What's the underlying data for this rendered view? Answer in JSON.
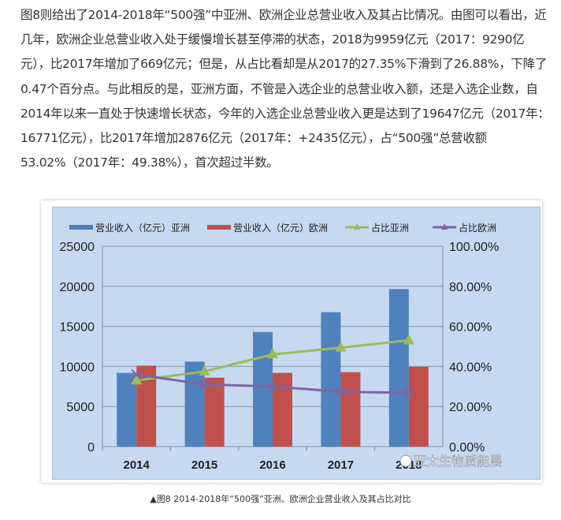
{
  "paragraph": "图8则给出了2014-2018年“500强”中亚洲、欧洲企业总营业收入及其占比情况。由图可以看出，近几年，欧洲企业总营业收入处于缓慢增长甚至停滞的状态，2018为9959亿元（2017：9290亿元），比2017年增加了669亿元；但是，从占比看却是从2017的27.35%下滑到了26.88%，下降了0.47个百分点。与此相反的是，亚洲方面，不管是入选企业的总营业收入额，还是入选企业数，自2014年以来一直处于快速增长状态，今年的入选企业总营业收入更是达到了19647亿元（2017年：16771亿元），比2017年增加2876亿元（2017年：+2435亿元），占“500强”总营收额53.02%（2017年：49.38%），首次超过半数。",
  "caption": "▲图8 2014-2018年“500强”亚洲、欧洲企业营业收入及其占比对比",
  "watermark": "亚太生物质能展",
  "chart_data": {
    "type": "bar",
    "categories": [
      "2014",
      "2015",
      "2016",
      "2017",
      "2018"
    ],
    "series": [
      {
        "name": "营业收入（亿元）亚洲",
        "type": "bar",
        "axis": "left",
        "color": "#4f81bd",
        "values": [
          9200,
          10600,
          14300,
          16771,
          19647
        ]
      },
      {
        "name": "营业收入（亿元）欧洲",
        "type": "bar",
        "axis": "left",
        "color": "#c0504d",
        "values": [
          10100,
          8600,
          9200,
          9290,
          9959
        ]
      },
      {
        "name": "占比亚洲",
        "type": "line",
        "axis": "right",
        "color": "#9bbb59",
        "values": [
          33.0,
          37.5,
          46.0,
          49.38,
          53.02
        ]
      },
      {
        "name": "占比欧洲",
        "type": "line",
        "axis": "right",
        "color": "#8064a2",
        "values": [
          36.0,
          31.0,
          30.0,
          27.35,
          26.88
        ]
      }
    ],
    "ylim": [
      0,
      25000
    ],
    "yticks": [
      "0",
      "5000",
      "10000",
      "15000",
      "20000",
      "25000"
    ],
    "y2lim": [
      0,
      100
    ],
    "y2ticks": [
      "0.00%",
      "20.00%",
      "40.00%",
      "60.00%",
      "80.00%",
      "100.00%"
    ],
    "legend": "top",
    "grid": true,
    "background": "#c6d9f1"
  }
}
